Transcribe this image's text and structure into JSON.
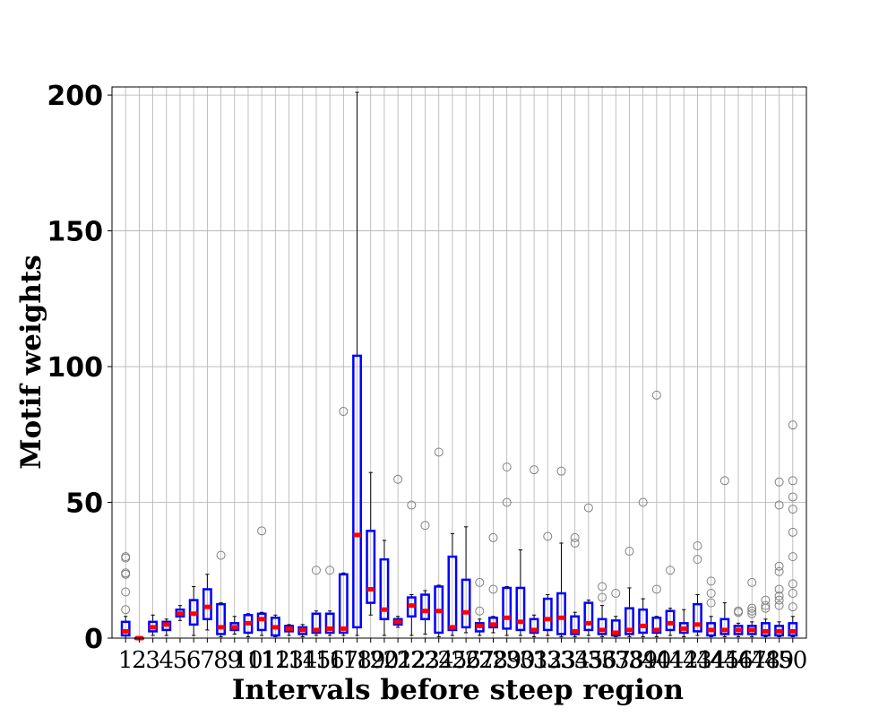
{
  "chart_data": {
    "type": "boxplot",
    "xlabel": "Intervals before steep region",
    "ylabel": "Motif weights",
    "ylim": [
      0,
      203
    ],
    "yticks": [
      0,
      50,
      100,
      150,
      200
    ],
    "grid": true,
    "colors": {
      "box": "#0000ff",
      "median": "#ff0000",
      "whisker": "#000000",
      "flier": "#808080",
      "grid": "#b0b0b0"
    },
    "categories": [
      "1",
      "2",
      "3",
      "4",
      "5",
      "6",
      "7",
      "8",
      "9",
      "10",
      "11",
      "12",
      "13",
      "14",
      "15",
      "16",
      "17",
      "18",
      "19",
      "20",
      "21",
      "22",
      "23",
      "24",
      "25",
      "26",
      "27",
      "28",
      "29",
      "30",
      "31",
      "32",
      "33",
      "34",
      "35",
      "36",
      "37",
      "38",
      "39",
      "40",
      "41",
      "42",
      "43",
      "44",
      "45",
      "46",
      "47",
      "48",
      "49",
      "50"
    ],
    "boxes": [
      {
        "q1": 1,
        "med": 2.5,
        "q3": 6,
        "lo": 0,
        "hi": 8,
        "fliers": [
          10.5,
          17,
          23.5,
          24,
          29.5,
          30
        ]
      },
      {
        "q1": 0,
        "med": 0,
        "q3": 0,
        "lo": 0,
        "hi": 0,
        "fliers": []
      },
      {
        "q1": 2.5,
        "med": 4,
        "q3": 6,
        "lo": 1,
        "hi": 8.5,
        "fliers": []
      },
      {
        "q1": 3,
        "med": 5,
        "q3": 6,
        "lo": 1,
        "hi": 7,
        "fliers": []
      },
      {
        "q1": 8,
        "med": 9,
        "q3": 10.5,
        "lo": 6.5,
        "hi": 12,
        "fliers": []
      },
      {
        "q1": 5,
        "med": 9,
        "q3": 14,
        "lo": 1,
        "hi": 19,
        "fliers": []
      },
      {
        "q1": 7,
        "med": 11.5,
        "q3": 18,
        "lo": 3,
        "hi": 23.5,
        "fliers": []
      },
      {
        "q1": 1.5,
        "med": 4,
        "q3": 12.5,
        "lo": 0.5,
        "hi": 13,
        "fliers": [
          30.5
        ]
      },
      {
        "q1": 3,
        "med": 4,
        "q3": 5.5,
        "lo": 1.5,
        "hi": 8,
        "fliers": []
      },
      {
        "q1": 2,
        "med": 5.5,
        "q3": 8.5,
        "lo": 0.5,
        "hi": 9,
        "fliers": []
      },
      {
        "q1": 3,
        "med": 7,
        "q3": 9,
        "lo": 1,
        "hi": 9.5,
        "fliers": [
          39.5
        ]
      },
      {
        "q1": 1,
        "med": 4,
        "q3": 7.5,
        "lo": 0.5,
        "hi": 8.5,
        "fliers": []
      },
      {
        "q1": 2.5,
        "med": 3.5,
        "q3": 4.5,
        "lo": 1,
        "hi": 5,
        "fliers": []
      },
      {
        "q1": 1.5,
        "med": 3,
        "q3": 4,
        "lo": 0.5,
        "hi": 5,
        "fliers": []
      },
      {
        "q1": 2,
        "med": 3,
        "q3": 9,
        "lo": 1,
        "hi": 10,
        "fliers": [
          25
        ]
      },
      {
        "q1": 2,
        "med": 3.5,
        "q3": 9,
        "lo": 1,
        "hi": 10,
        "fliers": [
          25
        ]
      },
      {
        "q1": 2,
        "med": 3.5,
        "q3": 23.5,
        "lo": 1,
        "hi": 24,
        "fliers": [
          83.5
        ]
      },
      {
        "q1": 4,
        "med": 38,
        "q3": 104,
        "lo": 1,
        "hi": 201,
        "fliers": []
      },
      {
        "q1": 13,
        "med": 18,
        "q3": 39.5,
        "lo": 8.5,
        "hi": 61,
        "fliers": []
      },
      {
        "q1": 7,
        "med": 10.5,
        "q3": 29,
        "lo": 1,
        "hi": 36,
        "fliers": []
      },
      {
        "q1": 5,
        "med": 6,
        "q3": 7,
        "lo": 4,
        "hi": 8,
        "fliers": [
          58.5
        ]
      },
      {
        "q1": 8,
        "med": 12,
        "q3": 15,
        "lo": 1,
        "hi": 16,
        "fliers": [
          49
        ]
      },
      {
        "q1": 7,
        "med": 10,
        "q3": 16,
        "lo": 1.5,
        "hi": 17.5,
        "fliers": [
          41.5
        ]
      },
      {
        "q1": 2,
        "med": 10,
        "q3": 19,
        "lo": 0.5,
        "hi": 19.5,
        "fliers": [
          68.5
        ]
      },
      {
        "q1": 3,
        "med": 4,
        "q3": 30,
        "lo": 1,
        "hi": 38.5,
        "fliers": []
      },
      {
        "q1": 4,
        "med": 9.5,
        "q3": 21.5,
        "lo": 2,
        "hi": 41,
        "fliers": []
      },
      {
        "q1": 2.5,
        "med": 4.5,
        "q3": 5.5,
        "lo": 1,
        "hi": 7,
        "fliers": [
          10,
          20.5
        ]
      },
      {
        "q1": 4,
        "med": 5,
        "q3": 7.5,
        "lo": 2,
        "hi": 8,
        "fliers": [
          18,
          37
        ]
      },
      {
        "q1": 3.5,
        "med": 7.5,
        "q3": 18.5,
        "lo": 1,
        "hi": 19,
        "fliers": [
          50,
          63
        ]
      },
      {
        "q1": 3,
        "med": 6,
        "q3": 18.5,
        "lo": 1,
        "hi": 32.5,
        "fliers": []
      },
      {
        "q1": 2,
        "med": 3,
        "q3": 7,
        "lo": 0.5,
        "hi": 8.5,
        "fliers": [
          62
        ]
      },
      {
        "q1": 3,
        "med": 7,
        "q3": 14.5,
        "lo": 1,
        "hi": 16,
        "fliers": [
          37.5
        ]
      },
      {
        "q1": 1.5,
        "med": 7.5,
        "q3": 16.5,
        "lo": 0.5,
        "hi": 35,
        "fliers": [
          61.5
        ]
      },
      {
        "q1": 1.5,
        "med": 2.5,
        "q3": 8,
        "lo": 0.5,
        "hi": 9.5,
        "fliers": [
          35,
          37
        ]
      },
      {
        "q1": 3,
        "med": 5.5,
        "q3": 13,
        "lo": 1,
        "hi": 14,
        "fliers": [
          48
        ]
      },
      {
        "q1": 1.5,
        "med": 3,
        "q3": 7,
        "lo": 0.5,
        "hi": 12,
        "fliers": [
          15,
          19
        ]
      },
      {
        "q1": 1,
        "med": 2,
        "q3": 6.5,
        "lo": 0.5,
        "hi": 8,
        "fliers": [
          16.5
        ]
      },
      {
        "q1": 1.5,
        "med": 3,
        "q3": 11,
        "lo": 0.5,
        "hi": 18.5,
        "fliers": [
          32
        ]
      },
      {
        "q1": 2,
        "med": 4.5,
        "q3": 10.5,
        "lo": 0.5,
        "hi": 14.5,
        "fliers": [
          50
        ]
      },
      {
        "q1": 2,
        "med": 3,
        "q3": 7.5,
        "lo": 0.5,
        "hi": 8,
        "fliers": [
          18,
          89.5
        ]
      },
      {
        "q1": 3,
        "med": 5.5,
        "q3": 10,
        "lo": 1,
        "hi": 11,
        "fliers": [
          25
        ]
      },
      {
        "q1": 2,
        "med": 3.5,
        "q3": 5.5,
        "lo": 0.5,
        "hi": 10.5,
        "fliers": []
      },
      {
        "q1": 2.5,
        "med": 5,
        "q3": 12.5,
        "lo": 1,
        "hi": 16,
        "fliers": [
          29,
          34
        ]
      },
      {
        "q1": 1,
        "med": 3,
        "q3": 5.5,
        "lo": 0.5,
        "hi": 8,
        "fliers": [
          13,
          16.5,
          21
        ]
      },
      {
        "q1": 1.5,
        "med": 3,
        "q3": 7,
        "lo": 0.5,
        "hi": 13,
        "fliers": [
          58
        ]
      },
      {
        "q1": 1.5,
        "med": 3,
        "q3": 4.5,
        "lo": 0.5,
        "hi": 5.5,
        "fliers": [
          9.5,
          10
        ]
      },
      {
        "q1": 1.5,
        "med": 3,
        "q3": 4.5,
        "lo": 0.5,
        "hi": 6,
        "fliers": [
          9,
          10,
          11,
          20.5
        ]
      },
      {
        "q1": 1,
        "med": 2.5,
        "q3": 5.5,
        "lo": 0.5,
        "hi": 7,
        "fliers": [
          11,
          12,
          14
        ]
      },
      {
        "q1": 1,
        "med": 2.5,
        "q3": 4.5,
        "lo": 0.5,
        "hi": 6,
        "fliers": [
          12,
          14,
          15.5,
          18,
          24.5,
          26.5,
          49,
          57.5
        ]
      },
      {
        "q1": 1,
        "med": 2.5,
        "q3": 5.5,
        "lo": 0.5,
        "hi": 8,
        "fliers": [
          11.5,
          16.5,
          20,
          30,
          39,
          47.5,
          52,
          58,
          78.5
        ]
      }
    ]
  }
}
